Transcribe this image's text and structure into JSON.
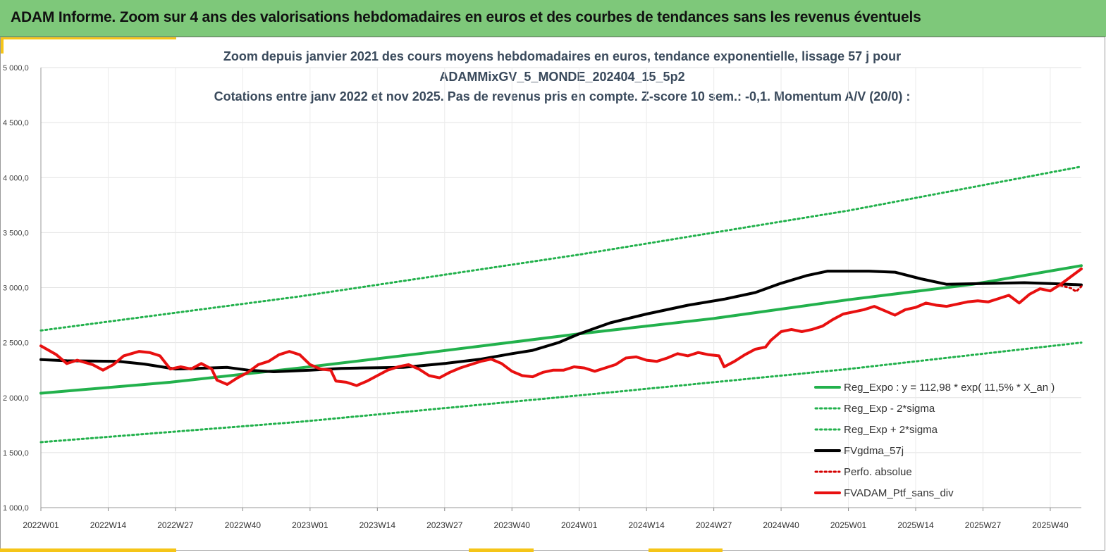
{
  "header": {
    "title": "ADAM Informe. Zoom sur 4 ans des valorisations hebdomadaires en euros et des courbes de tendances sans les revenus éventuels"
  },
  "colors": {
    "header_bg": "#7ec87a",
    "accent_yellow": "#f5c518",
    "reg_expo": "#22b14c",
    "band": "#22b14c",
    "fvgdma": "#000000",
    "perfo": "#d40000",
    "fvadam": "#e81010"
  },
  "chart_data": {
    "type": "line",
    "title_lines": [
      "Zoom depuis janvier 2021 des cours moyens hebdomadaires  en euros, tendance exponentielle, lissage 57 j pour",
      "ADAMMixGV_5_MONDE_202404_15_5p2",
      "Cotations entre janv 2022 et nov 2025. Pas de revenus pris en compte. Z-score 10 sem.: -0,1. Momentum A/V (20/0) :"
    ],
    "ylim": [
      1000,
      5000
    ],
    "y_ticks": [
      {
        "value": 1000,
        "label": "1 000,0"
      },
      {
        "value": 1500,
        "label": "1 500,0"
      },
      {
        "value": 2000,
        "label": "2 000,0"
      },
      {
        "value": 2500,
        "label": "2 500,0"
      },
      {
        "value": 3000,
        "label": "3 000,0"
      },
      {
        "value": 3500,
        "label": "3 500,0"
      },
      {
        "value": 4000,
        "label": "4 000,0"
      },
      {
        "value": 4500,
        "label": "4 500,0"
      },
      {
        "value": 5000,
        "label": "5 000,0"
      }
    ],
    "x_range_weeks": [
      0,
      201
    ],
    "x_ticks": [
      {
        "week": 0,
        "label": "2022W01"
      },
      {
        "week": 13,
        "label": "2022W14"
      },
      {
        "week": 26,
        "label": "2022W27"
      },
      {
        "week": 39,
        "label": "2022W40"
      },
      {
        "week": 52,
        "label": "2023W01"
      },
      {
        "week": 65,
        "label": "2023W14"
      },
      {
        "week": 78,
        "label": "2023W27"
      },
      {
        "week": 91,
        "label": "2023W40"
      },
      {
        "week": 104,
        "label": "2024W01"
      },
      {
        "week": 117,
        "label": "2024W14"
      },
      {
        "week": 130,
        "label": "2024W27"
      },
      {
        "week": 143,
        "label": "2024W40"
      },
      {
        "week": 156,
        "label": "2025W01"
      },
      {
        "week": 169,
        "label": "2025W14"
      },
      {
        "week": 182,
        "label": "2025W27"
      },
      {
        "week": 195,
        "label": "2025W40"
      }
    ],
    "grid": {
      "horizontal": true,
      "vertical": true
    },
    "legend_placement": "bottom-right",
    "series": [
      {
        "name": "Reg_Expo : y = 112,98 * exp( 11,5% *  X_an )",
        "style": "solid-thick",
        "color": "#22b14c",
        "points": [
          [
            0,
            2040
          ],
          [
            25,
            2140
          ],
          [
            50,
            2270
          ],
          [
            75,
            2410
          ],
          [
            104,
            2580
          ],
          [
            130,
            2720
          ],
          [
            156,
            2890
          ],
          [
            180,
            3030
          ],
          [
            201,
            3200
          ]
        ]
      },
      {
        "name": "Reg_Exp - 2*sigma",
        "style": "dotted",
        "color": "#22b14c",
        "points": [
          [
            0,
            1595
          ],
          [
            50,
            1780
          ],
          [
            104,
            2020
          ],
          [
            156,
            2260
          ],
          [
            201,
            2500
          ]
        ]
      },
      {
        "name": "Reg_Exp + 2*sigma",
        "style": "dotted",
        "color": "#22b14c",
        "points": [
          [
            0,
            2610
          ],
          [
            50,
            2920
          ],
          [
            104,
            3300
          ],
          [
            156,
            3700
          ],
          [
            201,
            4100
          ]
        ]
      },
      {
        "name": "FVgdma_57j",
        "style": "solid-thick",
        "color": "#000000",
        "points": [
          [
            0,
            2345
          ],
          [
            5,
            2335
          ],
          [
            15,
            2330
          ],
          [
            20,
            2305
          ],
          [
            26,
            2260
          ],
          [
            30,
            2265
          ],
          [
            36,
            2275
          ],
          [
            40,
            2250
          ],
          [
            45,
            2235
          ],
          [
            52,
            2250
          ],
          [
            58,
            2265
          ],
          [
            62,
            2270
          ],
          [
            70,
            2275
          ],
          [
            78,
            2310
          ],
          [
            85,
            2350
          ],
          [
            91,
            2400
          ],
          [
            95,
            2430
          ],
          [
            100,
            2500
          ],
          [
            104,
            2580
          ],
          [
            110,
            2680
          ],
          [
            117,
            2760
          ],
          [
            125,
            2840
          ],
          [
            132,
            2895
          ],
          [
            138,
            2955
          ],
          [
            143,
            3040
          ],
          [
            148,
            3110
          ],
          [
            152,
            3150
          ],
          [
            160,
            3150
          ],
          [
            165,
            3140
          ],
          [
            170,
            3080
          ],
          [
            175,
            3030
          ],
          [
            180,
            3035
          ],
          [
            185,
            3040
          ],
          [
            190,
            3045
          ],
          [
            196,
            3035
          ],
          [
            201,
            3025
          ]
        ]
      },
      {
        "name": "Perfo. absolue",
        "style": "dotted",
        "color": "#d40000",
        "points": [
          [
            197,
            3020
          ],
          [
            199,
            2995
          ],
          [
            200,
            2965
          ],
          [
            201,
            3010
          ]
        ]
      },
      {
        "name": "FVADAM_Ptf_sans_div",
        "style": "solid-thick",
        "color": "#e81010",
        "points": [
          [
            0,
            2470
          ],
          [
            3,
            2390
          ],
          [
            5,
            2310
          ],
          [
            7,
            2340
          ],
          [
            10,
            2300
          ],
          [
            12,
            2250
          ],
          [
            14,
            2300
          ],
          [
            16,
            2380
          ],
          [
            19,
            2420
          ],
          [
            21,
            2410
          ],
          [
            23,
            2380
          ],
          [
            25,
            2260
          ],
          [
            27,
            2280
          ],
          [
            29,
            2260
          ],
          [
            31,
            2310
          ],
          [
            33,
            2260
          ],
          [
            34,
            2160
          ],
          [
            36,
            2120
          ],
          [
            38,
            2180
          ],
          [
            40,
            2230
          ],
          [
            42,
            2300
          ],
          [
            44,
            2330
          ],
          [
            46,
            2390
          ],
          [
            48,
            2420
          ],
          [
            50,
            2390
          ],
          [
            52,
            2300
          ],
          [
            54,
            2260
          ],
          [
            56,
            2250
          ],
          [
            57,
            2150
          ],
          [
            59,
            2140
          ],
          [
            61,
            2110
          ],
          [
            63,
            2150
          ],
          [
            65,
            2200
          ],
          [
            67,
            2250
          ],
          [
            69,
            2280
          ],
          [
            71,
            2300
          ],
          [
            73,
            2260
          ],
          [
            75,
            2200
          ],
          [
            77,
            2180
          ],
          [
            79,
            2230
          ],
          [
            81,
            2270
          ],
          [
            83,
            2300
          ],
          [
            85,
            2330
          ],
          [
            87,
            2350
          ],
          [
            89,
            2310
          ],
          [
            91,
            2240
          ],
          [
            93,
            2200
          ],
          [
            95,
            2190
          ],
          [
            97,
            2230
          ],
          [
            99,
            2250
          ],
          [
            101,
            2250
          ],
          [
            103,
            2280
          ],
          [
            105,
            2270
          ],
          [
            107,
            2240
          ],
          [
            109,
            2270
          ],
          [
            111,
            2300
          ],
          [
            113,
            2360
          ],
          [
            115,
            2370
          ],
          [
            117,
            2340
          ],
          [
            119,
            2330
          ],
          [
            121,
            2360
          ],
          [
            123,
            2400
          ],
          [
            125,
            2380
          ],
          [
            127,
            2410
          ],
          [
            129,
            2390
          ],
          [
            131,
            2380
          ],
          [
            132,
            2280
          ],
          [
            134,
            2330
          ],
          [
            136,
            2390
          ],
          [
            138,
            2440
          ],
          [
            140,
            2460
          ],
          [
            141,
            2520
          ],
          [
            143,
            2600
          ],
          [
            145,
            2620
          ],
          [
            147,
            2600
          ],
          [
            149,
            2620
          ],
          [
            151,
            2650
          ],
          [
            153,
            2710
          ],
          [
            155,
            2760
          ],
          [
            157,
            2780
          ],
          [
            159,
            2800
          ],
          [
            161,
            2830
          ],
          [
            163,
            2790
          ],
          [
            165,
            2750
          ],
          [
            167,
            2800
          ],
          [
            169,
            2820
          ],
          [
            171,
            2860
          ],
          [
            173,
            2840
          ],
          [
            175,
            2830
          ],
          [
            177,
            2850
          ],
          [
            179,
            2870
          ],
          [
            181,
            2880
          ],
          [
            183,
            2870
          ],
          [
            185,
            2900
          ],
          [
            187,
            2930
          ],
          [
            189,
            2860
          ],
          [
            191,
            2940
          ],
          [
            193,
            2990
          ],
          [
            195,
            2970
          ],
          [
            197,
            3030
          ],
          [
            199,
            3100
          ],
          [
            201,
            3170
          ]
        ]
      }
    ]
  }
}
